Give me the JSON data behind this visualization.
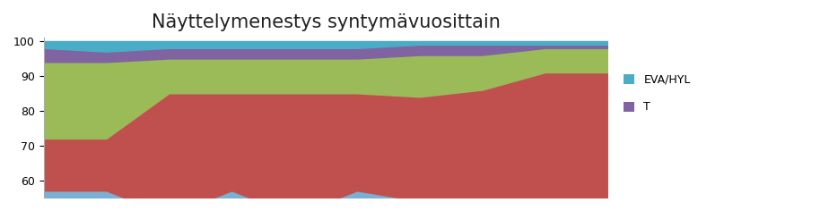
{
  "title": "Näyttelymenestys syntymävuosittain",
  "title_fontsize": 15,
  "x_values": [
    0,
    1,
    2,
    3,
    4,
    5,
    6,
    7,
    8,
    9
  ],
  "series": {
    "ERI": [
      57,
      57,
      50,
      57,
      50,
      57,
      54,
      50,
      49,
      50
    ],
    "HP": [
      15,
      15,
      35,
      28,
      35,
      28,
      30,
      36,
      42,
      41
    ],
    "KVA": [
      22,
      22,
      10,
      10,
      10,
      10,
      12,
      10,
      7,
      7
    ],
    "T": [
      4,
      3,
      3,
      3,
      3,
      3,
      3,
      3,
      1,
      1
    ],
    "EVA_HYL": [
      2,
      3,
      2,
      2,
      2,
      2,
      1,
      1,
      1,
      1
    ]
  },
  "colors": {
    "ERI": "#7ab0d4",
    "HP": "#c0504d",
    "KVA": "#9bbb59",
    "T": "#8064a2",
    "EVA_HYL": "#4bacc6"
  },
  "ylim": [
    55,
    101
  ],
  "yticks": [
    60,
    70,
    80,
    90,
    100
  ],
  "background_color": "#ffffff",
  "figure_width": 9.14,
  "figure_height": 2.36
}
